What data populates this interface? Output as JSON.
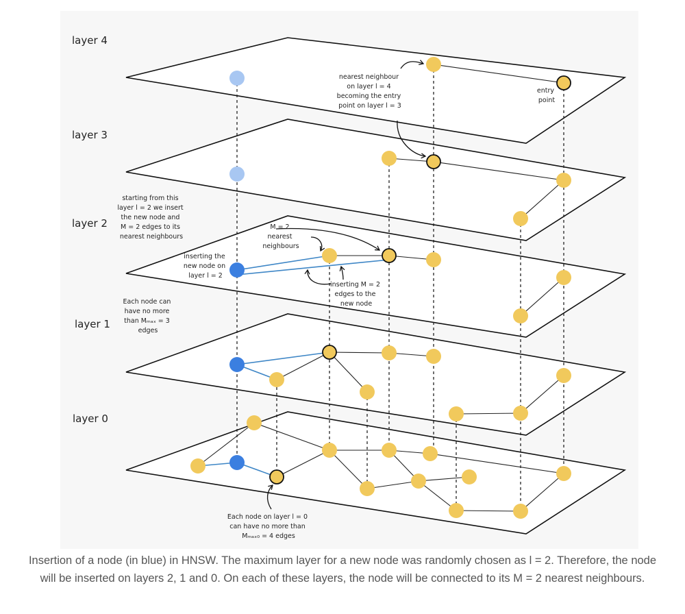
{
  "layers": [
    {
      "id": "layer-4",
      "label": "layer 4"
    },
    {
      "id": "layer-3",
      "label": "layer 3"
    },
    {
      "id": "layer-2",
      "label": "layer 2"
    },
    {
      "id": "layer-1",
      "label": "layer 1"
    },
    {
      "id": "layer-0",
      "label": "layer 0"
    }
  ],
  "annotations": {
    "nearest_neighbour": [
      "nearest neighbour",
      "on layer l = 4",
      "becoming the  entry",
      "point on layer l = 3"
    ],
    "entry_point": [
      "entry",
      "point"
    ],
    "starting_from": [
      "starting from this",
      "layer l = 2 we insert",
      "the new  node and",
      "M = 2 edges to its",
      "nearest neighbours"
    ],
    "m2_nearest": [
      "M = 2",
      "nearest",
      "neighbours"
    ],
    "inserting_node": [
      "inserting the",
      "new node on",
      "layer l = 2"
    ],
    "inserting_edges": [
      "inserting M = 2",
      "edges to the",
      "new node"
    ],
    "max_edges": [
      "Each node can",
      "have no more",
      "than Mₘₐₓ = 3",
      "edges"
    ],
    "layer0_edges": [
      "Each node on layer l = 0",
      "can have no more than",
      "Mₘₐₓ₀ = 4 edges"
    ]
  },
  "caption": "Insertion of a node (in blue) in HNSW. The maximum layer for a new node was randomly chosen as l = 2. Therefore, the node will be inserted on layers 2, 1 and 0. On each of these layers, the node will be connected to its M = 2 nearest neighbours.",
  "colors": {
    "existing_node": "#f1c95c",
    "new_node": "#3b7fe0",
    "new_node_ghost": "#a8c7f2",
    "new_edge": "#3e86c6",
    "plane_border": "#111111",
    "background": "#f7f7f7"
  }
}
